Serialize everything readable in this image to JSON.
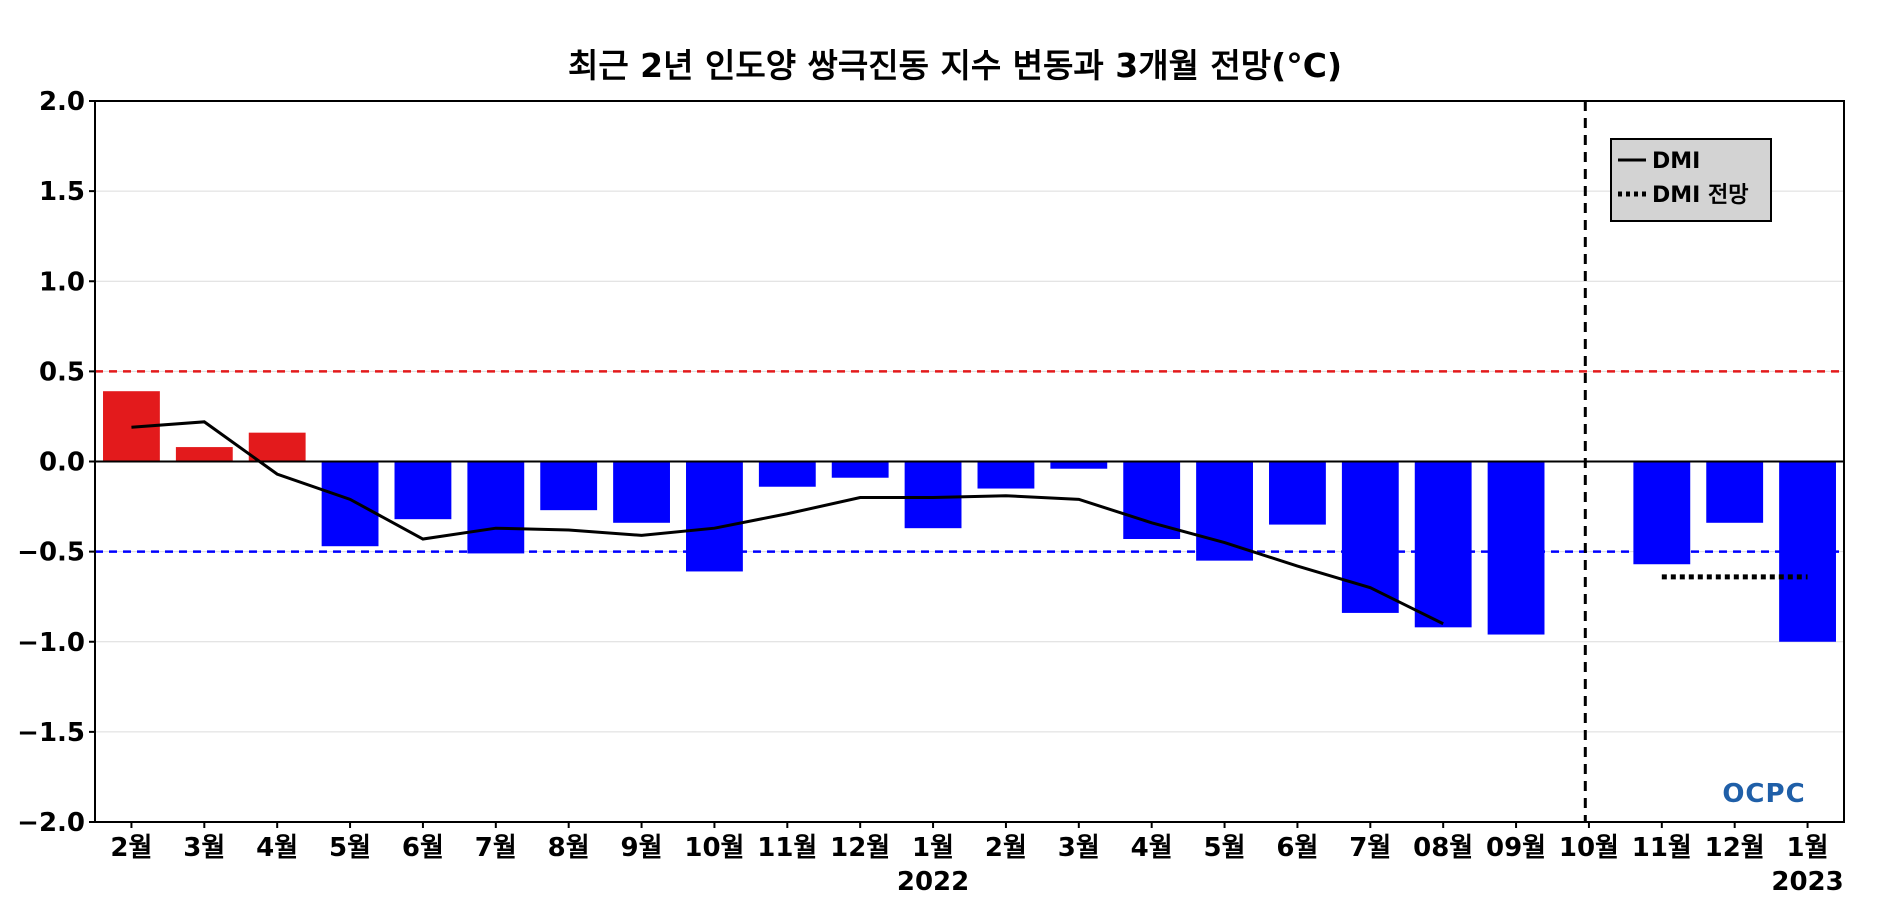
{
  "chart_data": {
    "type": "bar",
    "title": "최근 2년 인도양 쌍극진동 지수 변동과 3개월 전망(°C)",
    "ylim": [
      -2.0,
      2.0
    ],
    "yticks": [
      "2.0",
      "1.5",
      "1.0",
      "0.5",
      "0.0",
      "−0.5",
      "−1.0",
      "−1.5",
      "−2.0"
    ],
    "ytick_values": [
      2.0,
      1.5,
      1.0,
      0.5,
      0.0,
      -0.5,
      -1.0,
      -1.5,
      -2.0
    ],
    "categories": [
      "2월",
      "3월",
      "4월",
      "5월",
      "6월",
      "7월",
      "8월",
      "9월",
      "10월",
      "11월",
      "12월",
      "1월",
      "2월",
      "3월",
      "4월",
      "5월",
      "6월",
      "7월",
      "08월",
      "09월",
      "10월",
      "11월",
      "12월",
      "1월"
    ],
    "year_labels": [
      {
        "text": "2022",
        "category_index": 11
      },
      {
        "text": "2023",
        "category_index": 23
      }
    ],
    "bars": [
      0.39,
      0.08,
      0.16,
      -0.47,
      -0.32,
      -0.51,
      -0.27,
      -0.34,
      -0.61,
      -0.14,
      -0.09,
      -0.37,
      -0.15,
      -0.04,
      -0.43,
      -0.55,
      -0.35,
      -0.84,
      -0.92,
      -0.96,
      null,
      -0.57,
      -0.34,
      -1.0
    ],
    "positive_color": "#e31a1c",
    "negative_color": "#0000ff",
    "series": [
      {
        "name": "DMI",
        "style": "solid",
        "color": "#000000",
        "points": [
          [
            0,
            0.19
          ],
          [
            1,
            0.22
          ],
          [
            2,
            -0.07
          ],
          [
            3,
            -0.21
          ],
          [
            4,
            -0.43
          ],
          [
            5,
            -0.37
          ],
          [
            6,
            -0.38
          ],
          [
            7,
            -0.41
          ],
          [
            8,
            -0.37
          ],
          [
            9,
            -0.29
          ],
          [
            10,
            -0.2
          ],
          [
            11,
            -0.2
          ],
          [
            12,
            -0.19
          ],
          [
            13,
            -0.21
          ],
          [
            14,
            -0.34
          ],
          [
            15,
            -0.45
          ],
          [
            16,
            -0.58
          ],
          [
            17,
            -0.7
          ],
          [
            18,
            -0.9
          ]
        ]
      },
      {
        "name": "DMI 전망",
        "style": "dotted",
        "color": "#000000",
        "points": [
          [
            21,
            -0.64
          ],
          [
            23,
            -0.64
          ]
        ]
      }
    ],
    "thresholds": [
      {
        "value": 0.5,
        "color": "#e31a1c",
        "style": "dashed"
      },
      {
        "value": -0.5,
        "color": "#0000ff",
        "style": "dashed"
      }
    ],
    "forecast_divider_index": 20,
    "grid": true,
    "legend_position": "top-right"
  },
  "logo": {
    "text": "OCPC"
  }
}
